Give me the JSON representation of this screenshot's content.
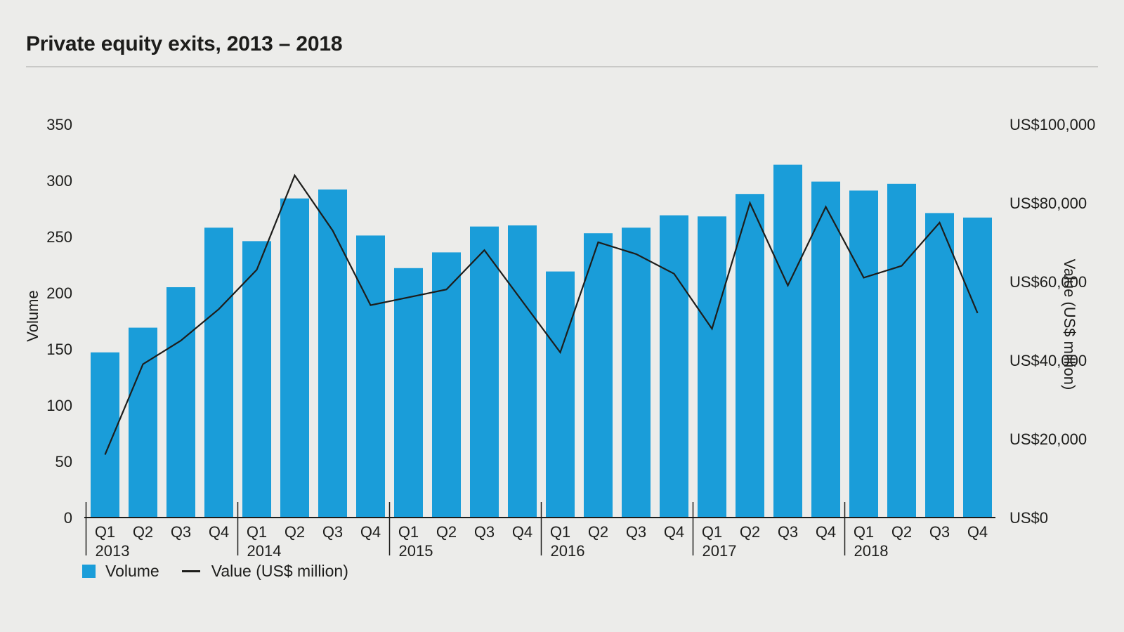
{
  "colors": {
    "background": "#ECECEA",
    "bar": "#1A9DD9",
    "line": "#1D1D1B",
    "text": "#1D1D1B",
    "divider": "#C9C9C7"
  },
  "legend": {
    "volume": "Volume",
    "value": "Value (US$ million)"
  },
  "chart_data": {
    "type": "bar+line",
    "title": "Private equity exits, 2013 – 2018",
    "years": [
      "2013",
      "2014",
      "2015",
      "2016",
      "2017",
      "2018"
    ],
    "quarter_labels": [
      "Q1",
      "Q2",
      "Q3",
      "Q4"
    ],
    "categories": [
      "Q1 2013",
      "Q2 2013",
      "Q3 2013",
      "Q4 2013",
      "Q1 2014",
      "Q2 2014",
      "Q3 2014",
      "Q4 2014",
      "Q1 2015",
      "Q2 2015",
      "Q3 2015",
      "Q4 2015",
      "Q1 2016",
      "Q2 2016",
      "Q3 2016",
      "Q4 2016",
      "Q1 2017",
      "Q2 2017",
      "Q3 2017",
      "Q4 2017",
      "Q1 2018",
      "Q2 2018",
      "Q3 2018",
      "Q4 2018"
    ],
    "series": [
      {
        "name": "Volume",
        "type": "bar",
        "axis": "left",
        "color": "#1A9DD9",
        "values": [
          147,
          169,
          205,
          258,
          246,
          284,
          292,
          251,
          222,
          236,
          259,
          260,
          219,
          253,
          258,
          269,
          268,
          288,
          314,
          299,
          291,
          297,
          271,
          267
        ]
      },
      {
        "name": "Value (US$ million)",
        "type": "line",
        "axis": "right",
        "color": "#1D1D1B",
        "values": [
          16000,
          39000,
          45000,
          53000,
          63000,
          87000,
          73000,
          54000,
          56000,
          58000,
          68000,
          55000,
          42000,
          70000,
          67000,
          62000,
          48000,
          80000,
          59000,
          79000,
          61000,
          64000,
          75000,
          52000
        ]
      }
    ],
    "left_axis": {
      "label": "Volume",
      "range": [
        0,
        350
      ],
      "ticks": [
        0,
        50,
        100,
        150,
        200,
        250,
        300,
        350
      ]
    },
    "right_axis": {
      "label": "Value (US$ million)",
      "range": [
        0,
        100000
      ],
      "ticks": [
        {
          "value": 0,
          "label": "US$0"
        },
        {
          "value": 20000,
          "label": "US$20,000"
        },
        {
          "value": 40000,
          "label": "US$40,000"
        },
        {
          "value": 60000,
          "label": "US$60,000"
        },
        {
          "value": 80000,
          "label": "US$80,000"
        },
        {
          "value": 100000,
          "label": "US$100,000"
        }
      ]
    },
    "legend_position": "bottom-left",
    "grid": false
  }
}
